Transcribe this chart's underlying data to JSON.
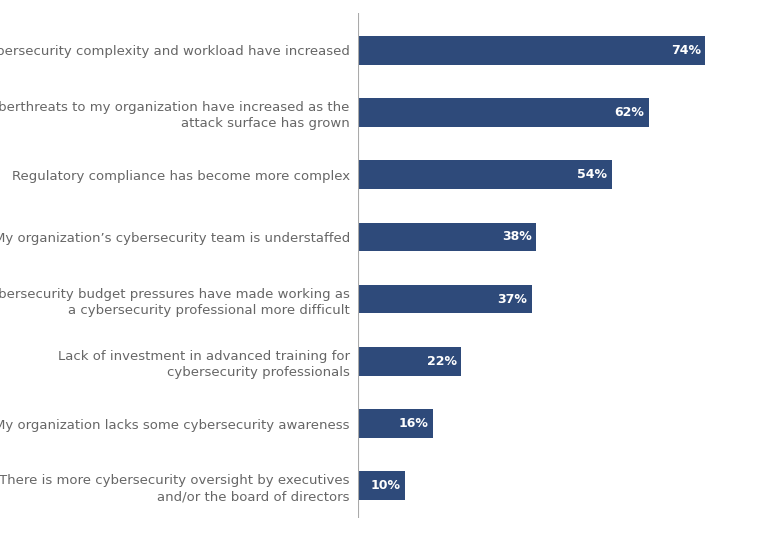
{
  "categories": [
    "There is more cybersecurity oversight by executives\nand/or the board of directors",
    "My organization lacks some cybersecurity awareness",
    "Lack of investment in advanced training for\ncybersecurity professionals",
    "Cybersecurity budget pressures have made working as\na cybersecurity professional more difficult",
    "My organization’s cybersecurity team is understaffed",
    "Regulatory compliance has become more complex",
    "Cyberthreats to my organization have increased as the\nattack surface has grown",
    "Cybersecurity complexity and workload have increased"
  ],
  "values": [
    10,
    16,
    22,
    37,
    38,
    54,
    62,
    74
  ],
  "bar_color": "#2e4a7a",
  "label_color": "#ffffff",
  "text_color": "#666666",
  "background_color": "#ffffff",
  "separator_color": "#aaaaaa",
  "bar_height": 0.62,
  "xlim": [
    0,
    82
  ],
  "label_fontsize": 9.0,
  "tick_fontsize": 9.5,
  "figsize": [
    7.62,
    5.34
  ],
  "dpi": 100
}
